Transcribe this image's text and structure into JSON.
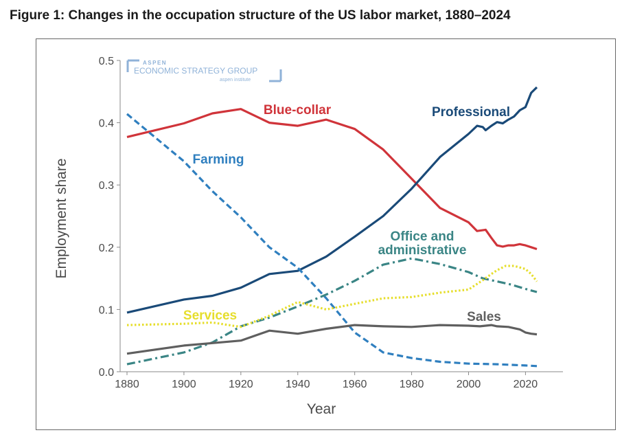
{
  "figure_title": "Figure 1: Changes in the occupation structure of the US labor market, 1880–2024",
  "watermark": {
    "line1": "ASPEN",
    "line2": "ECONOMIC STRATEGY GROUP",
    "line3": "aspen institute"
  },
  "chart_data": {
    "type": "line",
    "title": "Figure 1: Changes in the occupation structure of the US labor market, 1880–2024",
    "xlabel": "Year",
    "ylabel": "Employment share",
    "xlim": [
      1880,
      2024
    ],
    "ylim": [
      0,
      0.5
    ],
    "xticks": [
      "1880",
      "1900",
      "1920",
      "1940",
      "1960",
      "1980",
      "2000",
      "2020"
    ],
    "yticks": [
      "0.0",
      "0.1",
      "0.2",
      "0.3",
      "0.4",
      "0.5"
    ],
    "grid": false,
    "legend": "inline labels",
    "series": [
      {
        "name": "Blue-collar",
        "color": "#d0343a",
        "dash": "solid",
        "points": [
          [
            1880,
            0.377
          ],
          [
            1900,
            0.399
          ],
          [
            1910,
            0.415
          ],
          [
            1920,
            0.422
          ],
          [
            1930,
            0.4
          ],
          [
            1940,
            0.395
          ],
          [
            1950,
            0.405
          ],
          [
            1960,
            0.39
          ],
          [
            1970,
            0.357
          ],
          [
            1980,
            0.31
          ],
          [
            1990,
            0.263
          ],
          [
            2000,
            0.24
          ],
          [
            2003,
            0.226
          ],
          [
            2006,
            0.228
          ],
          [
            2008,
            0.215
          ],
          [
            2010,
            0.203
          ],
          [
            2012,
            0.201
          ],
          [
            2014,
            0.203
          ],
          [
            2016,
            0.203
          ],
          [
            2018,
            0.205
          ],
          [
            2020,
            0.203
          ],
          [
            2022,
            0.2
          ],
          [
            2024,
            0.197
          ]
        ]
      },
      {
        "name": "Professional",
        "color": "#1a4a78",
        "dash": "solid",
        "points": [
          [
            1880,
            0.095
          ],
          [
            1900,
            0.116
          ],
          [
            1910,
            0.122
          ],
          [
            1920,
            0.135
          ],
          [
            1930,
            0.157
          ],
          [
            1940,
            0.162
          ],
          [
            1950,
            0.185
          ],
          [
            1960,
            0.217
          ],
          [
            1970,
            0.25
          ],
          [
            1980,
            0.294
          ],
          [
            1990,
            0.345
          ],
          [
            2000,
            0.382
          ],
          [
            2003,
            0.395
          ],
          [
            2005,
            0.393
          ],
          [
            2006,
            0.388
          ],
          [
            2008,
            0.395
          ],
          [
            2010,
            0.401
          ],
          [
            2012,
            0.399
          ],
          [
            2014,
            0.405
          ],
          [
            2016,
            0.41
          ],
          [
            2018,
            0.42
          ],
          [
            2020,
            0.425
          ],
          [
            2022,
            0.448
          ],
          [
            2024,
            0.457
          ]
        ]
      },
      {
        "name": "Farming",
        "color": "#2f7fbf",
        "dash": "dashed",
        "points": [
          [
            1880,
            0.414
          ],
          [
            1900,
            0.338
          ],
          [
            1910,
            0.29
          ],
          [
            1920,
            0.248
          ],
          [
            1930,
            0.2
          ],
          [
            1940,
            0.167
          ],
          [
            1950,
            0.118
          ],
          [
            1960,
            0.063
          ],
          [
            1970,
            0.031
          ],
          [
            1980,
            0.022
          ],
          [
            1990,
            0.016
          ],
          [
            2000,
            0.013
          ],
          [
            2010,
            0.012
          ],
          [
            2020,
            0.01
          ],
          [
            2024,
            0.009
          ]
        ]
      },
      {
        "name": "Office and administrative",
        "color": "#3a8585",
        "dash": "dashdot",
        "points": [
          [
            1880,
            0.012
          ],
          [
            1900,
            0.031
          ],
          [
            1910,
            0.047
          ],
          [
            1920,
            0.073
          ],
          [
            1930,
            0.087
          ],
          [
            1940,
            0.105
          ],
          [
            1950,
            0.124
          ],
          [
            1960,
            0.146
          ],
          [
            1970,
            0.172
          ],
          [
            1980,
            0.182
          ],
          [
            1990,
            0.173
          ],
          [
            2000,
            0.16
          ],
          [
            2005,
            0.15
          ],
          [
            2010,
            0.145
          ],
          [
            2015,
            0.14
          ],
          [
            2020,
            0.133
          ],
          [
            2024,
            0.128
          ]
        ]
      },
      {
        "name": "Services",
        "color": "#e6de2c",
        "dash": "dotted",
        "points": [
          [
            1880,
            0.075
          ],
          [
            1900,
            0.077
          ],
          [
            1910,
            0.079
          ],
          [
            1920,
            0.072
          ],
          [
            1930,
            0.09
          ],
          [
            1940,
            0.112
          ],
          [
            1950,
            0.1
          ],
          [
            1960,
            0.109
          ],
          [
            1970,
            0.118
          ],
          [
            1980,
            0.12
          ],
          [
            1990,
            0.127
          ],
          [
            2000,
            0.132
          ],
          [
            2005,
            0.147
          ],
          [
            2008,
            0.157
          ],
          [
            2010,
            0.163
          ],
          [
            2013,
            0.17
          ],
          [
            2016,
            0.17
          ],
          [
            2020,
            0.165
          ],
          [
            2022,
            0.157
          ],
          [
            2024,
            0.145
          ]
        ]
      },
      {
        "name": "Sales",
        "color": "#5f5f5f",
        "dash": "solid",
        "points": [
          [
            1880,
            0.029
          ],
          [
            1900,
            0.042
          ],
          [
            1910,
            0.046
          ],
          [
            1920,
            0.05
          ],
          [
            1930,
            0.066
          ],
          [
            1940,
            0.061
          ],
          [
            1950,
            0.069
          ],
          [
            1960,
            0.075
          ],
          [
            1970,
            0.073
          ],
          [
            1980,
            0.072
          ],
          [
            1990,
            0.075
          ],
          [
            2000,
            0.074
          ],
          [
            2004,
            0.073
          ],
          [
            2008,
            0.075
          ],
          [
            2010,
            0.073
          ],
          [
            2014,
            0.072
          ],
          [
            2018,
            0.068
          ],
          [
            2020,
            0.063
          ],
          [
            2022,
            0.061
          ],
          [
            2024,
            0.06
          ]
        ]
      }
    ]
  }
}
